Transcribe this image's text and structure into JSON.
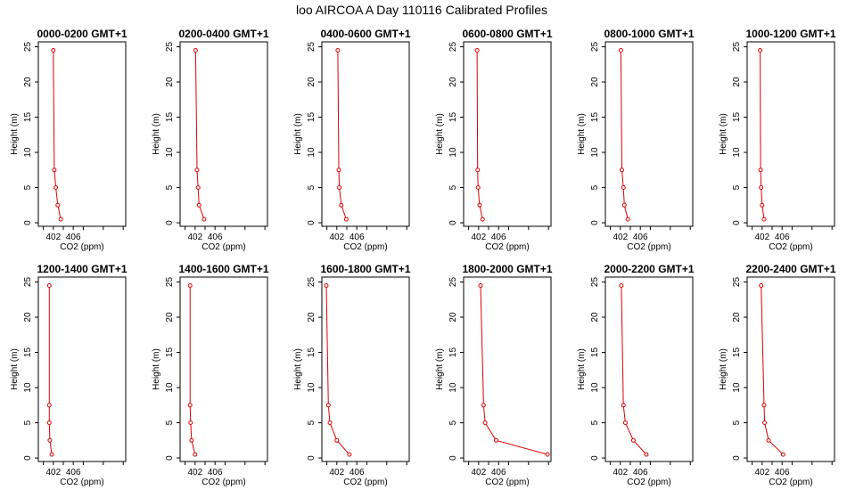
{
  "figure": {
    "title": "loo AIRCOA A  Day 110116  Calibrated Profiles"
  },
  "colors": {
    "series": "#e00000",
    "axes": "#000000",
    "background": "#ffffff"
  },
  "chart_data": [
    {
      "type": "line",
      "title": "0000-0200 GMT+1",
      "xlabel": "CO2 (ppm)",
      "ylabel": "Height (m)",
      "xlim": [
        399.0,
        416.5
      ],
      "ylim": [
        -0.5,
        25.7
      ],
      "xticks": [
        402,
        406
      ],
      "yticks": [
        0,
        5,
        10,
        15,
        20,
        25
      ],
      "grid": false,
      "series": [
        {
          "values": [
            {
              "x": 403.5,
              "y": 0.5
            },
            {
              "x": 402.9,
              "y": 2.5
            },
            {
              "x": 402.5,
              "y": 5
            },
            {
              "x": 402.2,
              "y": 7.5
            },
            {
              "x": 402.0,
              "y": 24.5
            }
          ]
        }
      ]
    },
    {
      "type": "line",
      "title": "0200-0400 GMT+1",
      "xlabel": "CO2 (ppm)",
      "ylabel": "Height (m)",
      "xlim": [
        399.0,
        416.5
      ],
      "ylim": [
        -0.5,
        25.7
      ],
      "xticks": [
        402,
        406
      ],
      "yticks": [
        0,
        5,
        10,
        15,
        20,
        25
      ],
      "grid": false,
      "series": [
        {
          "values": [
            {
              "x": 403.8,
              "y": 0.5
            },
            {
              "x": 402.8,
              "y": 2.5
            },
            {
              "x": 402.6,
              "y": 5
            },
            {
              "x": 402.4,
              "y": 7.5
            },
            {
              "x": 402.1,
              "y": 24.5
            }
          ]
        }
      ]
    },
    {
      "type": "line",
      "title": "0400-0600 GMT+1",
      "xlabel": "CO2 (ppm)",
      "ylabel": "Height (m)",
      "xlim": [
        399.0,
        416.5
      ],
      "ylim": [
        -0.5,
        25.7
      ],
      "xticks": [
        402,
        406
      ],
      "yticks": [
        0,
        5,
        10,
        15,
        20,
        25
      ],
      "grid": false,
      "series": [
        {
          "values": [
            {
              "x": 403.9,
              "y": 0.5
            },
            {
              "x": 402.9,
              "y": 2.5
            },
            {
              "x": 402.5,
              "y": 5
            },
            {
              "x": 402.4,
              "y": 7.5
            },
            {
              "x": 402.2,
              "y": 24.5
            }
          ]
        }
      ]
    },
    {
      "type": "line",
      "title": "0600-0800 GMT+1",
      "xlabel": "CO2 (ppm)",
      "ylabel": "Height (m)",
      "xlim": [
        399.0,
        416.5
      ],
      "ylim": [
        -0.5,
        25.7
      ],
      "xticks": [
        402,
        406
      ],
      "yticks": [
        0,
        5,
        10,
        15,
        20,
        25
      ],
      "grid": false,
      "series": [
        {
          "values": [
            {
              "x": 402.8,
              "y": 0.5
            },
            {
              "x": 402.2,
              "y": 2.5
            },
            {
              "x": 401.9,
              "y": 5
            },
            {
              "x": 401.8,
              "y": 7.5
            },
            {
              "x": 401.7,
              "y": 24.5
            }
          ]
        }
      ]
    },
    {
      "type": "line",
      "title": "0800-1000 GMT+1",
      "xlabel": "CO2 (ppm)",
      "ylabel": "Height (m)",
      "xlim": [
        399.0,
        416.5
      ],
      "ylim": [
        -0.5,
        25.7
      ],
      "xticks": [
        402,
        406
      ],
      "yticks": [
        0,
        5,
        10,
        15,
        20,
        25
      ],
      "grid": false,
      "series": [
        {
          "values": [
            {
              "x": 403.5,
              "y": 0.5
            },
            {
              "x": 402.8,
              "y": 2.5
            },
            {
              "x": 402.6,
              "y": 5
            },
            {
              "x": 402.3,
              "y": 7.5
            },
            {
              "x": 402.1,
              "y": 24.5
            }
          ]
        }
      ]
    },
    {
      "type": "line",
      "title": "1000-1200 GMT+1",
      "xlabel": "CO2 (ppm)",
      "ylabel": "Height (m)",
      "xlim": [
        399.0,
        416.5
      ],
      "ylim": [
        -0.5,
        25.7
      ],
      "xticks": [
        402,
        406
      ],
      "yticks": [
        0,
        5,
        10,
        15,
        20,
        25
      ],
      "grid": false,
      "series": [
        {
          "values": [
            {
              "x": 402.4,
              "y": 0.5
            },
            {
              "x": 402.0,
              "y": 2.5
            },
            {
              "x": 401.8,
              "y": 5
            },
            {
              "x": 401.7,
              "y": 7.5
            },
            {
              "x": 401.6,
              "y": 24.5
            }
          ]
        }
      ]
    },
    {
      "type": "line",
      "title": "1200-1400 GMT+1",
      "xlabel": "CO2 (ppm)",
      "ylabel": "Height (m)",
      "xlim": [
        399.0,
        416.5
      ],
      "ylim": [
        -0.5,
        25.7
      ],
      "xticks": [
        402,
        406
      ],
      "yticks": [
        0,
        5,
        10,
        15,
        20,
        25
      ],
      "grid": false,
      "series": [
        {
          "values": [
            {
              "x": 401.7,
              "y": 0.5
            },
            {
              "x": 401.3,
              "y": 2.5
            },
            {
              "x": 401.2,
              "y": 5
            },
            {
              "x": 401.2,
              "y": 7.5
            },
            {
              "x": 401.2,
              "y": 24.5
            }
          ]
        }
      ]
    },
    {
      "type": "line",
      "title": "1400-1600 GMT+1",
      "xlabel": "CO2 (ppm)",
      "ylabel": "Height (m)",
      "xlim": [
        399.0,
        416.5
      ],
      "ylim": [
        -0.5,
        25.7
      ],
      "xticks": [
        402,
        406
      ],
      "yticks": [
        0,
        5,
        10,
        15,
        20,
        25
      ],
      "grid": false,
      "series": [
        {
          "values": [
            {
              "x": 402.0,
              "y": 0.5
            },
            {
              "x": 401.3,
              "y": 2.5
            },
            {
              "x": 401.1,
              "y": 5
            },
            {
              "x": 401.0,
              "y": 7.5
            },
            {
              "x": 401.0,
              "y": 24.5
            }
          ]
        }
      ]
    },
    {
      "type": "line",
      "title": "1600-1800 GMT+1",
      "xlabel": "CO2 (ppm)",
      "ylabel": "Height (m)",
      "xlim": [
        399.0,
        416.5
      ],
      "ylim": [
        -0.5,
        25.7
      ],
      "xticks": [
        402,
        406
      ],
      "yticks": [
        0,
        5,
        10,
        15,
        20,
        25
      ],
      "grid": false,
      "series": [
        {
          "values": [
            {
              "x": 404.5,
              "y": 0.5
            },
            {
              "x": 402.0,
              "y": 2.5
            },
            {
              "x": 400.6,
              "y": 5
            },
            {
              "x": 400.3,
              "y": 7.5
            },
            {
              "x": 399.9,
              "y": 24.5
            }
          ]
        }
      ]
    },
    {
      "type": "line",
      "title": "1800-2000 GMT+1",
      "xlabel": "CO2 (ppm)",
      "ylabel": "Height (m)",
      "xlim": [
        399.0,
        416.5
      ],
      "ylim": [
        -0.5,
        25.7
      ],
      "xticks": [
        402,
        406
      ],
      "yticks": [
        0,
        5,
        10,
        15,
        20,
        25
      ],
      "grid": false,
      "series": [
        {
          "values": [
            {
              "x": 415.8,
              "y": 0.5
            },
            {
              "x": 405.5,
              "y": 2.5
            },
            {
              "x": 403.3,
              "y": 5
            },
            {
              "x": 403.0,
              "y": 7.5
            },
            {
              "x": 402.4,
              "y": 24.5
            }
          ]
        }
      ]
    },
    {
      "type": "line",
      "title": "2000-2200 GMT+1",
      "xlabel": "CO2 (ppm)",
      "ylabel": "Height (m)",
      "xlim": [
        399.0,
        416.5
      ],
      "ylim": [
        -0.5,
        25.7
      ],
      "xticks": [
        402,
        406
      ],
      "yticks": [
        0,
        5,
        10,
        15,
        20,
        25
      ],
      "grid": false,
      "series": [
        {
          "values": [
            {
              "x": 407.2,
              "y": 0.5
            },
            {
              "x": 404.6,
              "y": 2.5
            },
            {
              "x": 403.0,
              "y": 5
            },
            {
              "x": 402.6,
              "y": 7.5
            },
            {
              "x": 402.2,
              "y": 24.5
            }
          ]
        }
      ]
    },
    {
      "type": "line",
      "title": "2200-2400 GMT+1",
      "xlabel": "CO2 (ppm)",
      "ylabel": "Height (m)",
      "xlim": [
        399.0,
        416.5
      ],
      "ylim": [
        -0.5,
        25.7
      ],
      "xticks": [
        402,
        406
      ],
      "yticks": [
        0,
        5,
        10,
        15,
        20,
        25
      ],
      "grid": false,
      "series": [
        {
          "values": [
            {
              "x": 406.2,
              "y": 0.5
            },
            {
              "x": 403.3,
              "y": 2.5
            },
            {
              "x": 402.5,
              "y": 5
            },
            {
              "x": 402.4,
              "y": 7.5
            },
            {
              "x": 401.8,
              "y": 24.5
            }
          ]
        }
      ]
    }
  ]
}
